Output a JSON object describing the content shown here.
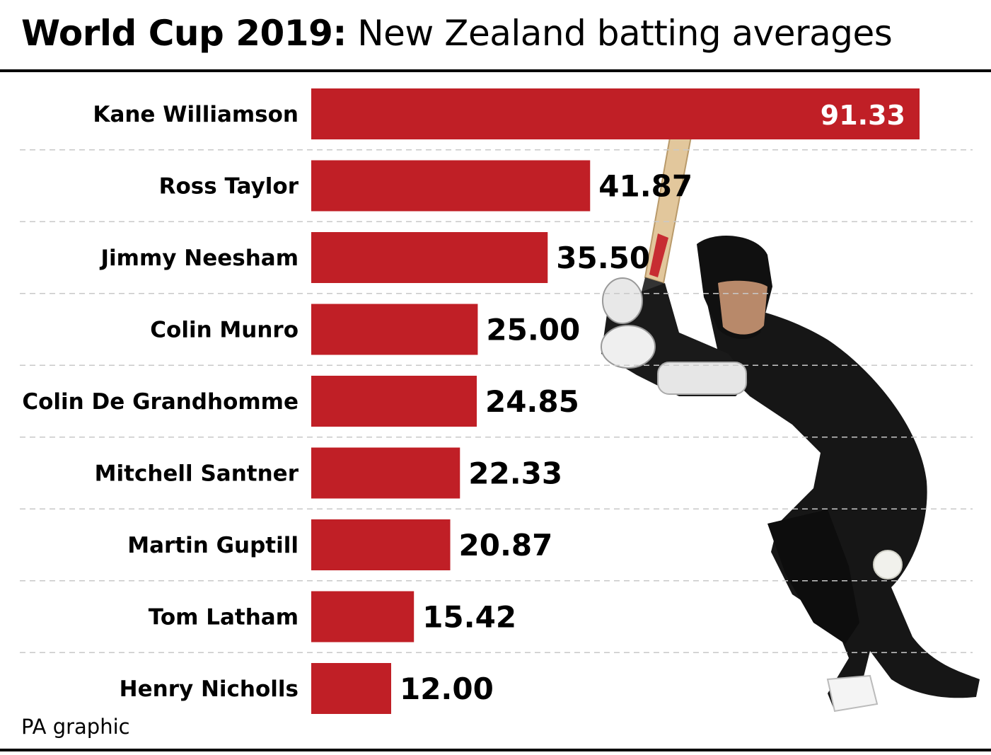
{
  "header": {
    "title_bold": "World Cup 2019:",
    "title_rest": "New Zealand batting averages"
  },
  "footer": {
    "source": "PA graphic"
  },
  "colors": {
    "bar": "#c01f26",
    "gridline": "#c8c8c8",
    "label_inside": "#ffffff",
    "label_outside": "#000000"
  },
  "chart_data": {
    "type": "bar",
    "orientation": "horizontal",
    "title": "World Cup 2019: New Zealand batting averages",
    "categories": [
      "Kane Williamson",
      "Ross Taylor",
      "Jimmy Neesham",
      "Colin Munro",
      "Colin De Grandhomme",
      "Mitchell Santner",
      "Martin Guptill",
      "Tom Latham",
      "Henry Nicholls"
    ],
    "values": [
      91.33,
      41.87,
      35.5,
      25.0,
      24.85,
      22.33,
      20.87,
      15.42,
      12.0
    ],
    "value_labels": [
      "91.33",
      "41.87",
      "35.50",
      "25.00",
      "24.85",
      "22.33",
      "20.87",
      "15.42",
      "12.00"
    ],
    "xlim": [
      0,
      91.33
    ],
    "grid": "dashed separators between rows",
    "legend": "none"
  }
}
